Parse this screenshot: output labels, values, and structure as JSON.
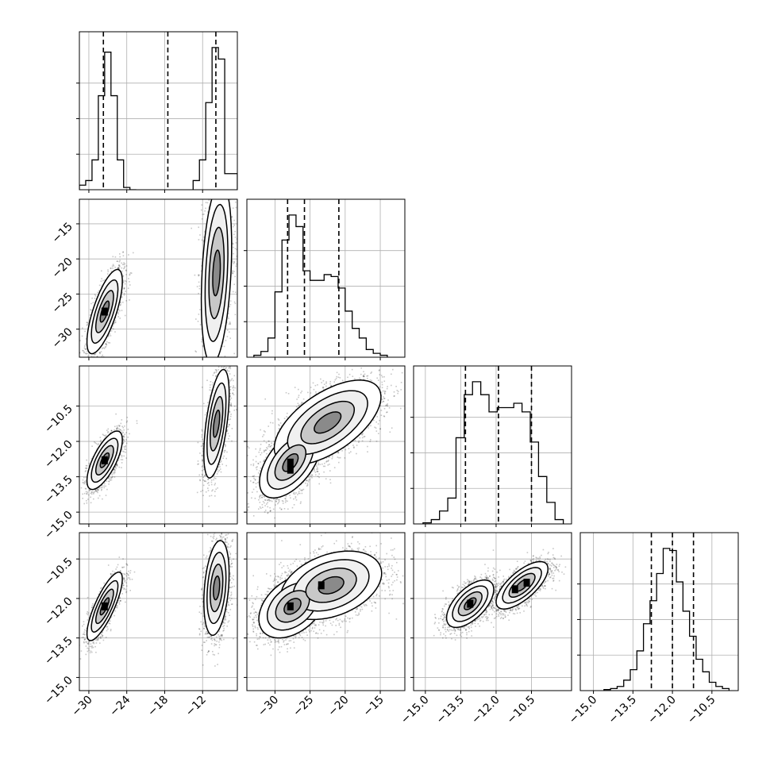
{
  "chart_data": {
    "type": "corner",
    "parameters": [
      {
        "range": [
          -31.5,
          -6.5
        ],
        "ticks": [
          -30,
          -24,
          -18,
          -12
        ],
        "tick_labels": [
          "−30",
          "−24",
          "−18",
          "−12"
        ],
        "quantiles": [
          -27.7,
          -17.5,
          -9.9
        ],
        "histogram": {
          "bins": [
            [
              -31.5,
              -30.5
            ],
            [
              -30.5,
              -29.5
            ],
            [
              -29.5,
              -28.5
            ],
            [
              -28.5,
              -27.5
            ],
            [
              -27.5,
              -26.5
            ],
            [
              -26.5,
              -25.5
            ],
            [
              -25.5,
              -24.5
            ],
            [
              -24.5,
              -23.5
            ],
            [
              -23.5,
              -22.5
            ],
            [
              -13.5,
              -12.5
            ],
            [
              -12.5,
              -11.5
            ],
            [
              -11.5,
              -10.5
            ],
            [
              -10.5,
              -9.5
            ],
            [
              -9.5,
              -8.5
            ],
            [
              -8.5,
              -7.5
            ],
            [
              -7.5,
              -6.5
            ]
          ],
          "counts": [
            0.02,
            0.04,
            0.13,
            0.41,
            0.6,
            0.41,
            0.13,
            0.01,
            0.0,
            0.04,
            0.13,
            0.38,
            0.62,
            0.57,
            0.07,
            0.07
          ]
        }
      },
      {
        "range": [
          -34,
          -11.5
        ],
        "ticks": [
          -30,
          -25,
          -20,
          -15
        ],
        "tick_labels": [
          "−30",
          "−25",
          "−20",
          "−15"
        ],
        "quantiles": [
          -28.2,
          -25.8,
          -20.9
        ],
        "histogram": {
          "bins": [
            [
              -33,
              -32
            ],
            [
              -32,
              -31
            ],
            [
              -31,
              -30
            ],
            [
              -30,
              -29
            ],
            [
              -29,
              -28
            ],
            [
              -28,
              -27
            ],
            [
              -27,
              -26
            ],
            [
              -26,
              -25
            ],
            [
              -25,
              -24
            ],
            [
              -24,
              -23
            ],
            [
              -23,
              -22
            ],
            [
              -22,
              -21
            ],
            [
              -21,
              -20
            ],
            [
              -20,
              -19
            ],
            [
              -19,
              -18
            ],
            [
              -18,
              -17
            ],
            [
              -17,
              -16
            ],
            [
              -16,
              -15
            ],
            [
              -15,
              -14
            ]
          ],
          "counts": [
            0.01,
            0.03,
            0.1,
            0.34,
            0.61,
            0.74,
            0.68,
            0.45,
            0.4,
            0.4,
            0.43,
            0.42,
            0.36,
            0.24,
            0.15,
            0.1,
            0.04,
            0.02,
            0.01
          ]
        }
      },
      {
        "range": [
          -15.5,
          -8.8
        ],
        "ticks": [
          -15.0,
          -13.5,
          -12.0,
          -10.5
        ],
        "tick_labels": [
          "−15.0",
          "−13.5",
          "−12.0",
          "−10.5"
        ],
        "quantiles": [
          -13.3,
          -11.9,
          -10.5
        ],
        "histogram": {
          "bins": [
            [
              -15.1,
              -14.75
            ],
            [
              -14.75,
              -14.4
            ],
            [
              -14.4,
              -14.05
            ],
            [
              -14.05,
              -13.7
            ],
            [
              -13.7,
              -13.35
            ],
            [
              -13.35,
              -13.0
            ],
            [
              -13.0,
              -12.65
            ],
            [
              -12.65,
              -12.3
            ],
            [
              -12.3,
              -11.95
            ],
            [
              -11.95,
              -11.6
            ],
            [
              -11.6,
              -11.25
            ],
            [
              -11.25,
              -10.9
            ],
            [
              -10.9,
              -10.55
            ],
            [
              -10.55,
              -10.2
            ],
            [
              -10.2,
              -9.85
            ],
            [
              -9.85,
              -9.5
            ],
            [
              -9.5,
              -9.15
            ]
          ],
          "counts": [
            0.005,
            0.02,
            0.06,
            0.12,
            0.4,
            0.6,
            0.66,
            0.6,
            0.52,
            0.54,
            0.54,
            0.56,
            0.52,
            0.38,
            0.22,
            0.1,
            0.02
          ]
        }
      },
      {
        "range": [
          -15.5,
          -9.5
        ],
        "ticks": [
          -15.0,
          -13.5,
          -12.0,
          -10.5
        ],
        "tick_labels": [
          "−15.0",
          "−13.5",
          "−12.0",
          "−10.5"
        ],
        "quantiles": [
          -12.8,
          -12.0,
          -11.2
        ],
        "histogram": {
          "bins": [
            [
              -14.6,
              -14.35
            ],
            [
              -14.35,
              -14.1
            ],
            [
              -14.1,
              -13.85
            ],
            [
              -13.85,
              -13.6
            ],
            [
              -13.6,
              -13.35
            ],
            [
              -13.35,
              -13.1
            ],
            [
              -13.1,
              -12.85
            ],
            [
              -12.85,
              -12.6
            ],
            [
              -12.6,
              -12.35
            ],
            [
              -12.35,
              -12.1
            ],
            [
              -12.1,
              -11.85
            ],
            [
              -11.85,
              -11.6
            ],
            [
              -11.6,
              -11.35
            ],
            [
              -11.35,
              -11.1
            ],
            [
              -11.1,
              -10.85
            ],
            [
              -10.85,
              -10.6
            ],
            [
              -10.6,
              -10.35
            ],
            [
              -10.35,
              -10.1
            ],
            [
              -10.1,
              -9.85
            ]
          ],
          "counts": [
            0.005,
            0.01,
            0.02,
            0.05,
            0.1,
            0.19,
            0.32,
            0.43,
            0.56,
            0.68,
            0.67,
            0.52,
            0.38,
            0.26,
            0.15,
            0.09,
            0.04,
            0.02,
            0.01
          ]
        }
      }
    ],
    "pairs": [
      {
        "row": 1,
        "col": 0,
        "modes": [
          {
            "center": [
              -27.5,
              -27.5
            ],
            "sx": 1.4,
            "sy": 3.0,
            "rho": 0.72,
            "n": 1600
          },
          {
            "center": [
              -9.8,
              -22.0
            ],
            "sx": 1.2,
            "sy": 6.5,
            "rho": 0.3,
            "n": 1800
          }
        ],
        "densest": [
          [
            -27.5,
            -27.5
          ]
        ]
      },
      {
        "row": 2,
        "col": 0,
        "modes": [
          {
            "center": [
              -27.5,
              -12.8
            ],
            "sx": 1.4,
            "sy": 0.62,
            "rho": 0.7,
            "n": 1600
          },
          {
            "center": [
              -9.8,
              -11.25
            ],
            "sx": 1.0,
            "sy": 1.15,
            "rho": 0.55,
            "n": 1800
          }
        ],
        "densest": [
          [
            -27.5,
            -12.8
          ]
        ]
      },
      {
        "row": 2,
        "col": 1,
        "modes": [
          {
            "center": [
              -27.8,
              -12.9
            ],
            "sx": 2.2,
            "sy": 0.75,
            "rho": 0.55,
            "n": 2400
          },
          {
            "center": [
              -22.5,
              -11.2
            ],
            "sx": 3.8,
            "sy": 0.9,
            "rho": 0.6,
            "n": 2400
          }
        ],
        "densest": [
          [
            -27.8,
            -12.9
          ],
          [
            -27.8,
            -13.2
          ]
        ]
      },
      {
        "row": 3,
        "col": 0,
        "modes": [
          {
            "center": [
              -27.5,
              -12.3
            ],
            "sx": 1.4,
            "sy": 0.65,
            "rho": 0.8,
            "n": 1600
          },
          {
            "center": [
              -9.8,
              -11.6
            ],
            "sx": 1.0,
            "sy": 0.9,
            "rho": 0.3,
            "n": 1800
          }
        ],
        "densest": [
          [
            -27.5,
            -12.3
          ]
        ]
      },
      {
        "row": 3,
        "col": 1,
        "modes": [
          {
            "center": [
              -27.5,
              -12.3
            ],
            "sx": 2.4,
            "sy": 0.6,
            "rho": 0.4,
            "n": 2400
          },
          {
            "center": [
              -22.0,
              -11.5
            ],
            "sx": 3.6,
            "sy": 0.65,
            "rho": 0.35,
            "n": 2400
          }
        ],
        "densest": [
          [
            -27.8,
            -12.3
          ],
          [
            -23.4,
            -11.5
          ]
        ]
      },
      {
        "row": 3,
        "col": 2,
        "modes": [
          {
            "center": [
              -13.1,
              -12.2
            ],
            "sx": 0.5,
            "sy": 0.45,
            "rho": 0.6,
            "n": 2300
          },
          {
            "center": [
              -10.9,
              -11.5
            ],
            "sx": 0.55,
            "sy": 0.45,
            "rho": 0.7,
            "n": 2300
          }
        ],
        "densest": [
          [
            -10.7,
            -11.4
          ],
          [
            -11.2,
            -11.65
          ],
          [
            -13.1,
            -12.2
          ]
        ]
      }
    ]
  }
}
